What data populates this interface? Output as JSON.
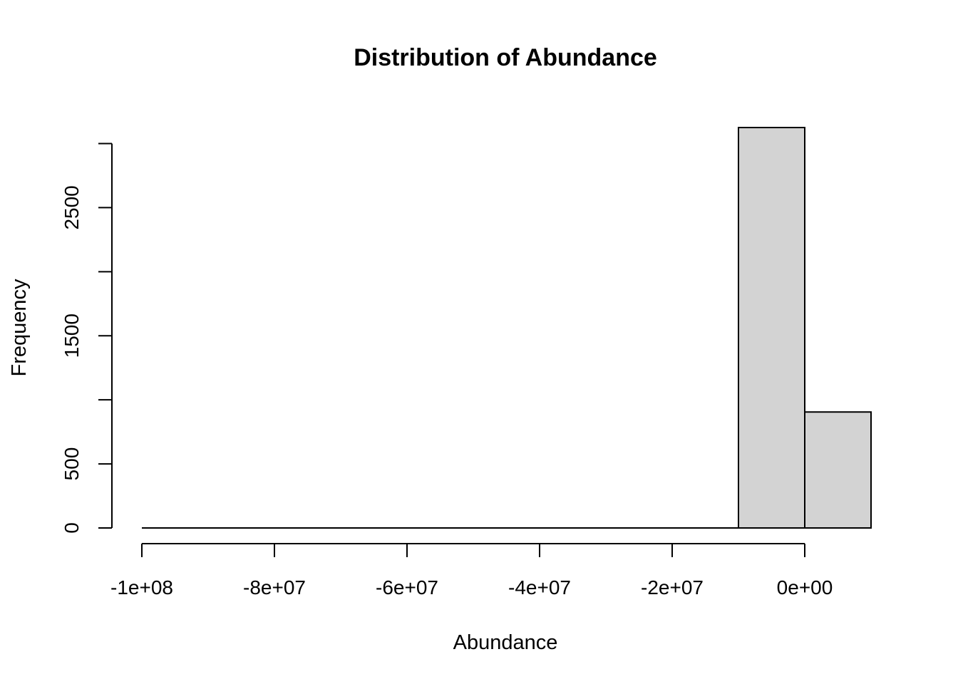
{
  "chart_data": {
    "type": "bar",
    "title": "Distribution of Abundance",
    "xlabel": "Abundance",
    "ylabel": "Frequency",
    "bar_color": "#d3d3d3",
    "edge_color": "#000000",
    "bins": [
      {
        "start": -100000000,
        "end": -90000000,
        "count": 0
      },
      {
        "start": -90000000,
        "end": -80000000,
        "count": 0
      },
      {
        "start": -80000000,
        "end": -70000000,
        "count": 0
      },
      {
        "start": -70000000,
        "end": -60000000,
        "count": 0
      },
      {
        "start": -60000000,
        "end": -50000000,
        "count": 0
      },
      {
        "start": -50000000,
        "end": -40000000,
        "count": 0
      },
      {
        "start": -40000000,
        "end": -30000000,
        "count": 0
      },
      {
        "start": -30000000,
        "end": -20000000,
        "count": 0
      },
      {
        "start": -20000000,
        "end": -10000000,
        "count": 0
      },
      {
        "start": -10000000,
        "end": 0,
        "count": 3125
      },
      {
        "start": 0,
        "end": 10000000,
        "count": 905
      }
    ],
    "x_ticks": [
      {
        "value": -100000000,
        "label": "-1e+08"
      },
      {
        "value": -80000000,
        "label": "-8e+07"
      },
      {
        "value": -60000000,
        "label": "-6e+07"
      },
      {
        "value": -40000000,
        "label": "-4e+07"
      },
      {
        "value": -20000000,
        "label": "-2e+07"
      },
      {
        "value": 0,
        "label": "0e+00"
      }
    ],
    "y_ticks": [
      {
        "value": 0,
        "label": "0"
      },
      {
        "value": 500,
        "label": "500"
      },
      {
        "value": 1000,
        "label": ""
      },
      {
        "value": 1500,
        "label": "1500"
      },
      {
        "value": 2000,
        "label": ""
      },
      {
        "value": 2500,
        "label": "2500"
      },
      {
        "value": 3000,
        "label": ""
      }
    ],
    "xlim": [
      -100000000,
      10000000
    ],
    "ylim": [
      0,
      3125
    ],
    "grid": false,
    "legend": "none"
  }
}
